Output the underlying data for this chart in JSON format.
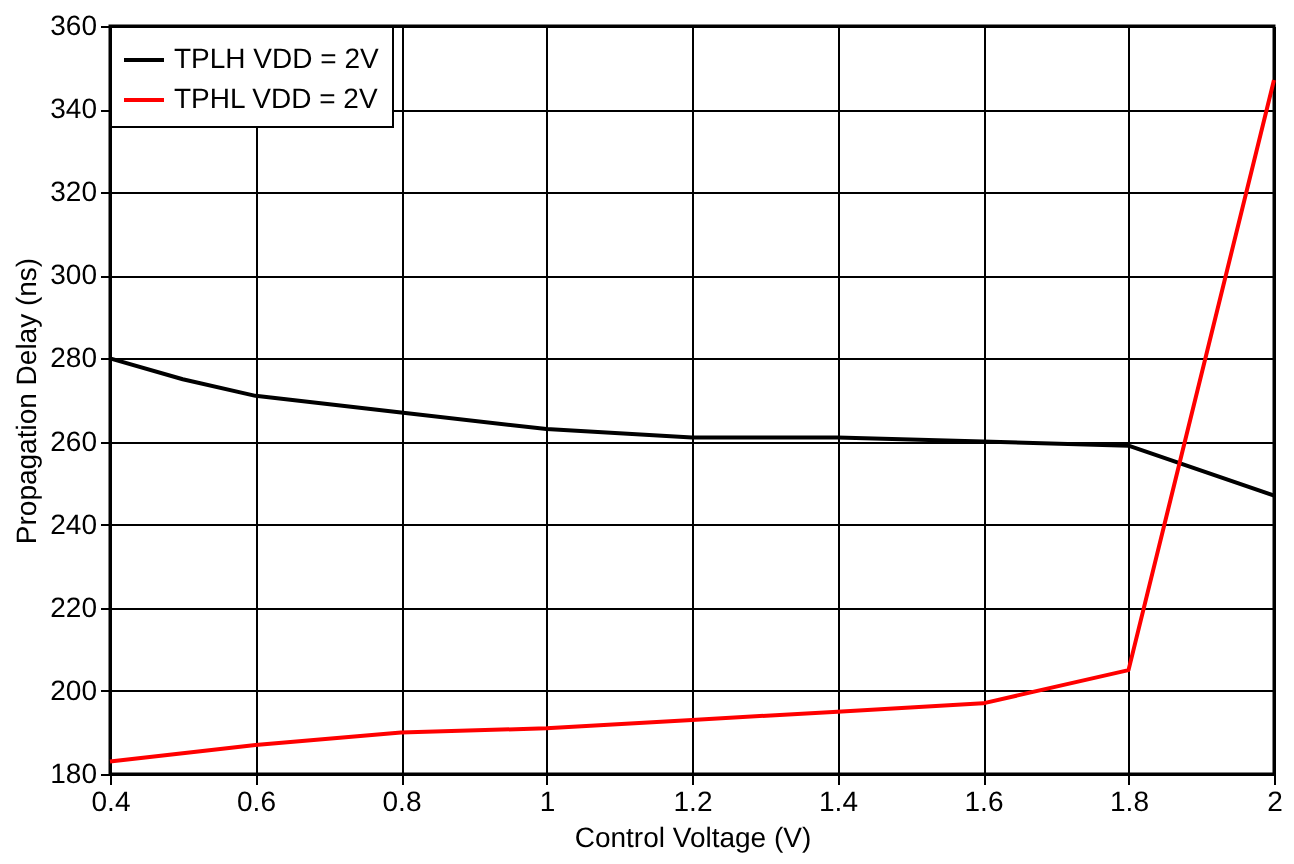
{
  "chart_data": {
    "type": "line",
    "xlabel": "Control Voltage (V)",
    "ylabel": "Propagation Delay (ns)",
    "series": [
      {
        "name": "TPLH VDD = 2V",
        "color": "#000000",
        "x": [
          0.4,
          0.5,
          0.6,
          0.8,
          1.0,
          1.2,
          1.4,
          1.6,
          1.8,
          2.0
        ],
        "values": [
          280,
          275,
          271,
          267,
          263,
          261,
          261,
          260,
          259,
          247
        ]
      },
      {
        "name": "TPHL VDD = 2V",
        "color": "#ff0000",
        "x": [
          0.4,
          0.6,
          0.8,
          1.0,
          1.2,
          1.4,
          1.6,
          1.8,
          2.0
        ],
        "values": [
          183,
          187,
          190,
          191,
          193,
          195,
          197,
          205,
          347
        ]
      }
    ],
    "xlim": [
      0.4,
      2
    ],
    "xticks": [
      0.4,
      0.6,
      0.8,
      1,
      1.2,
      1.4,
      1.6,
      1.8,
      2
    ],
    "ylim": [
      180,
      360
    ],
    "yticks": [
      180,
      200,
      220,
      240,
      260,
      280,
      300,
      320,
      340,
      360
    ],
    "grid": true,
    "legend": "top left",
    "marker": "none",
    "line_style": "solid"
  }
}
